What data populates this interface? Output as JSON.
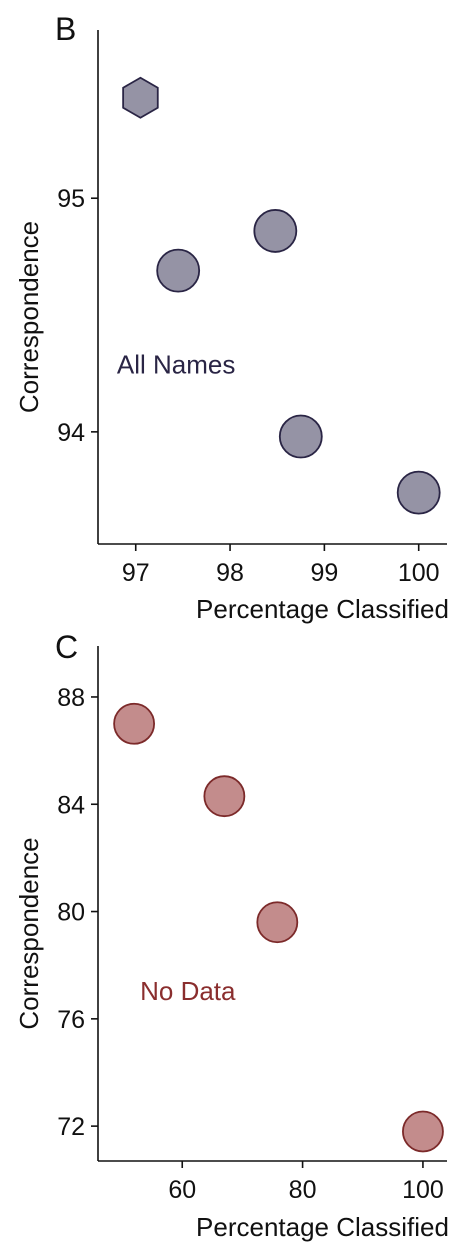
{
  "chart_data": [
    {
      "type": "scatter",
      "panel_label": "B",
      "xlabel": "Percentage Classified",
      "ylabel": "Correspondence",
      "xlim": [
        96.6,
        100.3
      ],
      "ylim": [
        93.52,
        95.72
      ],
      "xticks": [
        97,
        98,
        99,
        100
      ],
      "yticks": [
        94,
        95
      ],
      "grid": false,
      "annotation": {
        "text": "All Names",
        "x": 96.8,
        "y": 94.25
      },
      "colors": {
        "marker_fill": "#9593a5",
        "marker_edge": "#2a2545",
        "annotation": "#2a2545"
      },
      "series": [
        {
          "points": [
            {
              "x": 97.05,
              "y": 95.43,
              "marker": "hexagon"
            },
            {
              "x": 97.45,
              "y": 94.69,
              "marker": "circle"
            },
            {
              "x": 98.48,
              "y": 94.86,
              "marker": "circle"
            },
            {
              "x": 98.75,
              "y": 93.98,
              "marker": "circle"
            },
            {
              "x": 100.0,
              "y": 93.74,
              "marker": "circle"
            }
          ]
        }
      ]
    },
    {
      "type": "scatter",
      "panel_label": "C",
      "xlabel": "Percentage Classified",
      "ylabel": "Correspondence",
      "xlim": [
        46,
        104
      ],
      "ylim": [
        70.7,
        89.9
      ],
      "xticks": [
        60,
        80,
        100
      ],
      "yticks": [
        72,
        76,
        80,
        84,
        88
      ],
      "grid": false,
      "annotation": {
        "text": "No Data",
        "x": 53,
        "y": 76.7
      },
      "colors": {
        "marker_fill": "#c38c8c",
        "marker_edge": "#7c2a2a",
        "annotation": "#8a2e2e"
      },
      "series": [
        {
          "points": [
            {
              "x": 52.0,
              "y": 87.0,
              "marker": "circle"
            },
            {
              "x": 67.0,
              "y": 84.3,
              "marker": "circle"
            },
            {
              "x": 75.8,
              "y": 79.6,
              "marker": "circle"
            },
            {
              "x": 100.0,
              "y": 71.8,
              "marker": "circle"
            }
          ]
        }
      ]
    }
  ]
}
